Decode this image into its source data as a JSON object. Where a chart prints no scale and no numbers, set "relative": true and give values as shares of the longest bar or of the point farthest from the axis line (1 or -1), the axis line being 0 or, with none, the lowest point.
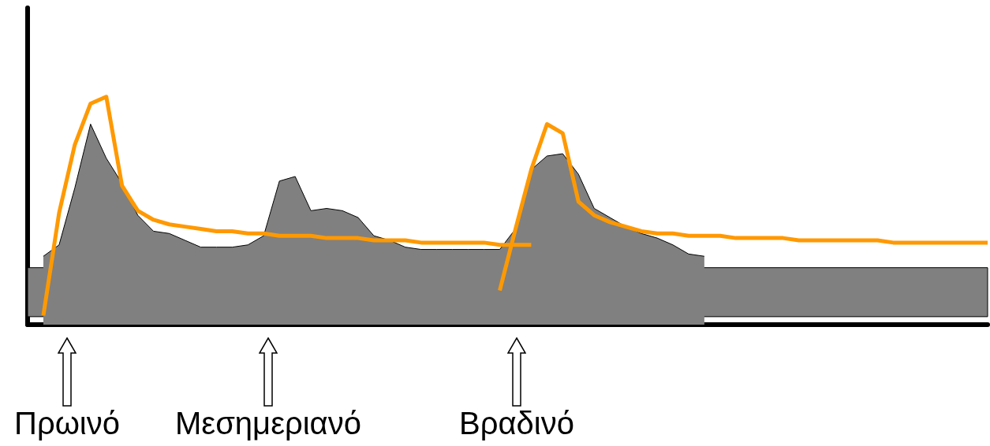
{
  "chart_data": {
    "type": "area",
    "relative": true,
    "grid": false,
    "marker": "none",
    "categories": [
      null,
      null,
      null,
      null,
      null,
      null,
      null,
      null,
      null,
      null,
      null,
      null,
      null,
      null,
      null,
      null,
      null,
      null,
      null,
      null,
      null,
      null,
      null,
      null,
      null,
      null,
      null,
      null,
      null,
      null,
      null,
      null,
      null,
      null,
      null,
      null,
      null,
      null,
      null,
      null,
      null,
      null,
      null,
      null,
      null,
      null,
      null,
      null,
      null,
      null,
      null,
      null,
      null,
      null,
      null,
      null,
      null,
      null,
      null,
      null,
      null,
      null
    ],
    "series": [
      {
        "color": "#808080",
        "values": [
          null,
          0.3,
          0.35,
          0.6,
          0.88,
          0.73,
          0.62,
          0.48,
          0.41,
          0.4,
          0.37,
          0.34,
          0.34,
          0.34,
          0.35,
          0.39,
          0.63,
          0.65,
          0.5,
          0.51,
          0.5,
          0.47,
          0.39,
          0.37,
          0.34,
          0.33,
          0.33,
          0.33,
          0.33,
          0.33,
          0.33,
          0.42,
          0.68,
          0.74,
          0.75,
          0.66,
          0.51,
          0.47,
          0.43,
          0.4,
          0.38,
          0.35,
          0.31,
          0.3,
          null,
          null,
          null,
          null,
          null,
          null,
          null,
          null,
          null,
          null,
          null,
          null,
          null,
          null,
          null,
          null,
          null,
          null
        ]
      },
      {
        "type": "line",
        "color": "#ff9900",
        "values": [
          null,
          0.04,
          0.49,
          0.79,
          0.97,
          1.0,
          0.61,
          0.5,
          0.46,
          0.44,
          0.43,
          0.42,
          0.41,
          0.41,
          0.4,
          0.4,
          0.39,
          0.39,
          0.39,
          0.38,
          0.38,
          0.38,
          0.37,
          0.37,
          0.37,
          0.36,
          0.36,
          0.36,
          0.36,
          0.36,
          0.35,
          0.35,
          0.35,
          null,
          null,
          null,
          null,
          null,
          null,
          null,
          null,
          null,
          null,
          null,
          null,
          null,
          null,
          null,
          null,
          null,
          null,
          null,
          null,
          null,
          null,
          null,
          null,
          null,
          null,
          null,
          null,
          null
        ]
      },
      {
        "type": "line",
        "color": "#ff9900",
        "values": [
          null,
          null,
          null,
          null,
          null,
          null,
          null,
          null,
          null,
          null,
          null,
          null,
          null,
          null,
          null,
          null,
          null,
          null,
          null,
          null,
          null,
          null,
          null,
          null,
          null,
          null,
          null,
          null,
          null,
          null,
          0.15,
          0.42,
          0.68,
          0.88,
          0.84,
          0.54,
          0.48,
          0.45,
          0.43,
          0.41,
          0.4,
          0.4,
          0.39,
          0.39,
          0.39,
          0.38,
          0.38,
          0.38,
          0.38,
          0.37,
          0.37,
          0.37,
          0.37,
          0.37,
          0.37,
          0.36,
          0.36,
          0.36,
          0.36,
          0.36,
          0.36,
          0.36
        ]
      }
    ],
    "bands": [
      {
        "axis": "y",
        "from": 0.035,
        "to": 0.25,
        "color": "#808080"
      }
    ],
    "annotations": [
      "Πρωινό",
      "Μεσημεριανό",
      "Βραδινό"
    ]
  }
}
